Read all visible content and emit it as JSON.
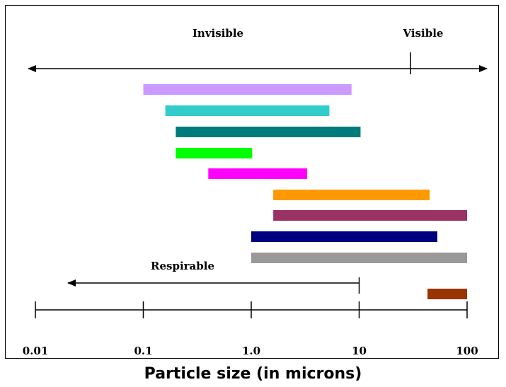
{
  "caption": "Particle size (in microns)",
  "chart_data": {
    "type": "bar",
    "orientation": "horizontal-range",
    "x_scale": "log",
    "xlim": [
      0.01,
      100
    ],
    "ticks": [
      {
        "value": 0.01,
        "label": "0.01"
      },
      {
        "value": 0.1,
        "label": "0.1"
      },
      {
        "value": 1,
        "label": "1.0"
      },
      {
        "value": 10,
        "label": "10"
      },
      {
        "value": 100,
        "label": "100"
      }
    ],
    "xlabel": "Particle size (in microns)",
    "visibility_boundary": 30,
    "regions": [
      {
        "label": "Invisible",
        "placement": "left of boundary"
      },
      {
        "label": "Visible",
        "placement": "right of boundary"
      }
    ],
    "respirable": {
      "label": "Respirable",
      "max": 10
    },
    "bars": [
      {
        "start": 0.1,
        "end": 8.5,
        "color": "#cc99ff"
      },
      {
        "start": 0.16,
        "end": 5.3,
        "color": "#33cccc"
      },
      {
        "start": 0.2,
        "end": 10.3,
        "color": "#007b7b"
      },
      {
        "start": 0.2,
        "end": 1.02,
        "color": "#00ff00"
      },
      {
        "start": 0.4,
        "end": 3.3,
        "color": "#ff00ff"
      },
      {
        "start": 1.6,
        "end": 45,
        "color": "#ff9900"
      },
      {
        "start": 1.6,
        "end": 100,
        "color": "#993366"
      },
      {
        "start": 1.0,
        "end": 53,
        "color": "#000080"
      },
      {
        "start": 1.0,
        "end": 100,
        "color": "#999999"
      },
      {
        "start": 43,
        "end": 100,
        "color": "#993300"
      }
    ]
  }
}
